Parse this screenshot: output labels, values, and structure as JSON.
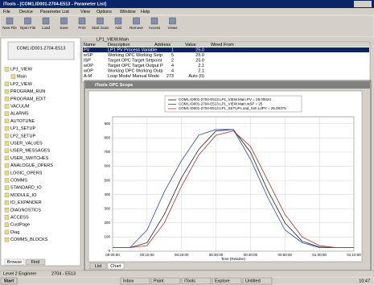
{
  "window": {
    "title": "iTools - [COM1.ID001-2704-E513 - Parameter List]"
  },
  "menu": [
    "File",
    "Device",
    "Parameter List",
    "View",
    "Options",
    "Window",
    "Help"
  ],
  "toolbar": [
    "New File",
    "Open File",
    "Load",
    "Save",
    "Print",
    "Start Scan",
    "Add",
    "Remove",
    "Access",
    "Views"
  ],
  "address_bar": "LP1_VIEW.Main",
  "tree": {
    "root": "COM1.ID001-2704-E513",
    "items": [
      "LP1_VIEW",
      "Main",
      "LP2_VIEW",
      "PROGRAM_RUN",
      "PROGRAM_EDIT",
      "VACUUM",
      "ALARMS",
      "AUTOTUNE",
      "LP1_SETUP",
      "LP2_SETUP",
      "USER_VALUES",
      "USER_MESSAGES",
      "USER_SWITCHES",
      "ANALOGUE_OPERS",
      "LOGIC_OPERS",
      "COMMS",
      "STANDARD_IO",
      "MODULE_IO",
      "IO_EXPANDER",
      "DIAGNOSTICS",
      "ACCESS",
      "CustPage",
      "Diag",
      "COMMS_BLOCKS"
    ]
  },
  "tabs": [
    "Browse",
    "Find"
  ],
  "table": {
    "columns": [
      "Name",
      "Description",
      "Address",
      "Value",
      "Wired From"
    ],
    "rows": [
      [
        "PV",
        "LP1 PV Process Variable",
        1,
        "25.0"
      ],
      [
        "wSP",
        "Working OPC Working Setp",
        5,
        "25.0"
      ],
      [
        "tSP",
        "Target OPC Target Setpoint",
        2,
        "25.0"
      ],
      [
        "wOP",
        "Target OPC Target Output P",
        4,
        "2.1"
      ],
      [
        "wOP",
        "Working OPC Working Outp",
        4,
        "2.1"
      ],
      [
        "A-M",
        "Loop Mode/ Manual Mode",
        273,
        "Auto (0)"
      ]
    ]
  },
  "scope": {
    "title": "iTools OPC Scope",
    "tabs": [
      "List",
      "Chart"
    ]
  },
  "chart_data": {
    "type": "line",
    "x_label": "Time (Relative)",
    "x": [
      0,
      5,
      10,
      15,
      20,
      25,
      30,
      35,
      40,
      45,
      50,
      55,
      60,
      65,
      70
    ],
    "series": [
      {
        "name": "COM1.ID001-2704-E513.LP1_VIEW.Main.PV = 25.00024",
        "color": "#202020",
        "values": [
          25,
          25,
          60,
          260,
          520,
          720,
          850,
          860,
          700,
          430,
          200,
          70,
          30,
          25,
          25
        ]
      },
      {
        "name": "COM1.ID001-2704-E513.LP1_VIEW.Main.wSP = 25",
        "color": "#3050b0",
        "values": [
          25,
          25,
          150,
          420,
          640,
          820,
          860,
          860,
          650,
          380,
          150,
          60,
          25,
          25,
          25
        ]
      },
      {
        "name": "COM1.ID001-2704-E513.LP1_SETUP.Load_Sim.LdPV = 25.00379",
        "color": "#b03030",
        "values": [
          25,
          25,
          40,
          200,
          460,
          680,
          820,
          850,
          740,
          500,
          260,
          100,
          40,
          25,
          25
        ]
      }
    ],
    "xlim": [
      0,
      70
    ],
    "xticks": [
      {
        "value": 0,
        "label": "00:00:00"
      },
      {
        "value": 10,
        "label": "00:10:00"
      },
      {
        "value": 20,
        "label": "00:20:00"
      },
      {
        "value": 30,
        "label": "00:30:00"
      },
      {
        "value": 40,
        "label": "00:40:00"
      },
      {
        "value": 50,
        "label": "00:50:00"
      },
      {
        "value": 60,
        "label": "01:00:00"
      },
      {
        "value": 70,
        "label": "01:10:00"
      }
    ],
    "ylim": [
      0,
      950
    ],
    "yticks": [
      0,
      100,
      200,
      300,
      400,
      500,
      600,
      700,
      800,
      900
    ],
    "grid": true
  },
  "status": [
    "Level 2 Engineer",
    "2704 - E513"
  ],
  "taskbar": {
    "start": "Start",
    "tasks": [
      "Inbox",
      "Paint",
      "iTools",
      "Explore",
      "Untitled"
    ],
    "clock": "10:47"
  }
}
